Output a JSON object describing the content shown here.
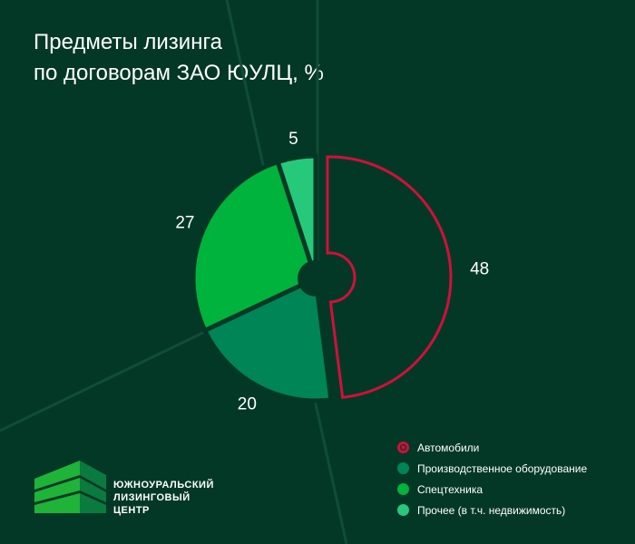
{
  "title_lines": [
    "Предметы лизинга",
    "по договорам ЗАО ЮУЛЦ, %"
  ],
  "chart_data": {
    "type": "pie",
    "title": "Предметы лизинга по договорам ЗАО ЮУЛЦ, %",
    "categories": [
      "Автомобили",
      "Производственное оборудование",
      "Спецтехника",
      "Прочее (в т.ч. недвижимость)"
    ],
    "values": [
      48,
      20,
      27,
      5
    ],
    "colors": [
      "#d0103a",
      "#008556",
      "#00b33c",
      "#26c97a"
    ],
    "highlighted": "Автомобили",
    "legend_position": "bottom-right"
  },
  "logo": {
    "lines": [
      "ЮЖНОУРАЛЬСКИЙ",
      "ЛИЗИНГОВЫЙ",
      "ЦЕНТР"
    ]
  }
}
